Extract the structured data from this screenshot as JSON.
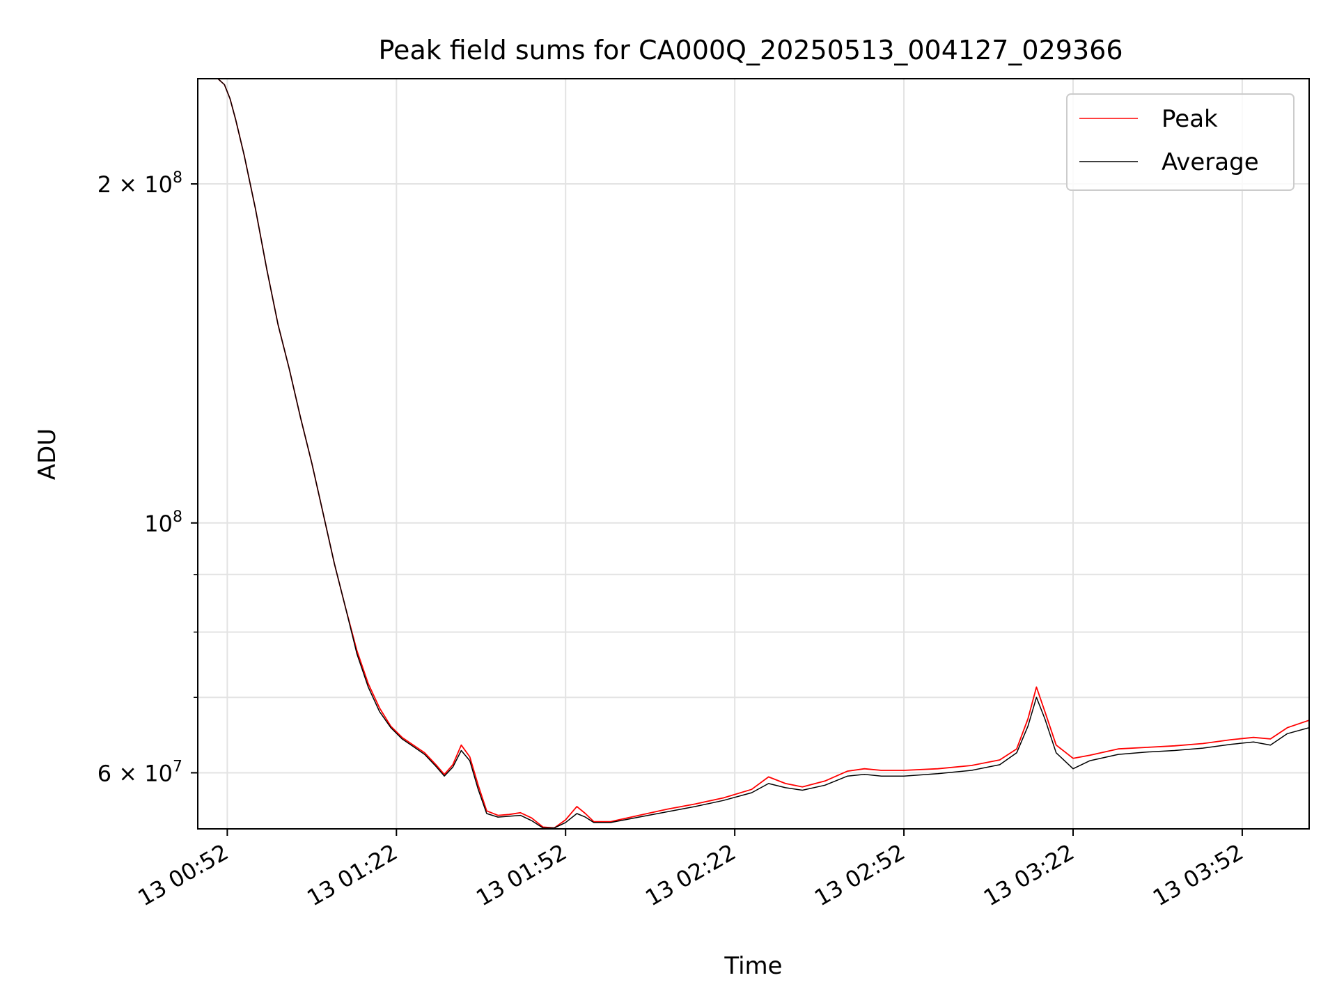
{
  "chart_data": {
    "type": "line",
    "title": "Peak field sums for CA000Q_20250513_004127_029366",
    "xlabel": "Time",
    "ylabel": "ADU",
    "yscale": "log",
    "ylim": [
      53500000,
      248000000
    ],
    "xlim": [
      "00:46:46",
      "04:03:52"
    ],
    "x_ticks": [
      {
        "label": "13 00:52",
        "time": "00:52:00"
      },
      {
        "label": "13 01:22",
        "time": "01:22:00"
      },
      {
        "label": "13 01:52",
        "time": "01:52:00"
      },
      {
        "label": "13 02:22",
        "time": "02:22:00"
      },
      {
        "label": "13 02:52",
        "time": "02:52:00"
      },
      {
        "label": "13 03:22",
        "time": "03:22:00"
      },
      {
        "label": "13 03:52",
        "time": "03:52:00"
      }
    ],
    "y_ticks": [
      {
        "label": "2 × 10",
        "sup": "8",
        "value": 200000000
      },
      {
        "label": "10",
        "sup": "8",
        "value": 100000000
      },
      {
        "label": "6 × 10",
        "sup": "7",
        "value": 60000000
      }
    ],
    "y_minor_ticks": [
      70000000,
      80000000,
      90000000
    ],
    "grid": true,
    "legend": "top-right",
    "series": [
      {
        "name": "Peak",
        "color": "#ff0000",
        "data": [
          [
            "00:46:46",
            248000000
          ],
          [
            "00:50:20",
            248000000
          ],
          [
            "00:51:30",
            245000000
          ],
          [
            "00:52:30",
            238000000
          ],
          [
            "00:53:30",
            228000000
          ],
          [
            "00:55:00",
            212000000
          ],
          [
            "00:57:00",
            190000000
          ],
          [
            "00:59:00",
            168000000
          ],
          [
            "01:01:00",
            150000000
          ],
          [
            "01:03:00",
            137000000
          ],
          [
            "01:05:00",
            124000000
          ],
          [
            "01:07:00",
            113000000
          ],
          [
            "01:09:00",
            102000000
          ],
          [
            "01:11:00",
            92000000
          ],
          [
            "01:13:00",
            84000000
          ],
          [
            "01:15:00",
            77000000
          ],
          [
            "01:17:00",
            72000000
          ],
          [
            "01:19:00",
            68500000
          ],
          [
            "01:21:00",
            66000000
          ],
          [
            "01:23:00",
            64500000
          ],
          [
            "01:25:00",
            63500000
          ],
          [
            "01:27:00",
            62500000
          ],
          [
            "01:29:00",
            61000000
          ],
          [
            "01:30:30",
            59800000
          ],
          [
            "01:32:00",
            61000000
          ],
          [
            "01:33:30",
            63500000
          ],
          [
            "01:35:00",
            62000000
          ],
          [
            "01:36:30",
            58500000
          ],
          [
            "01:38:00",
            55500000
          ],
          [
            "01:40:00",
            55000000
          ],
          [
            "01:42:00",
            55100000
          ],
          [
            "01:44:00",
            55300000
          ],
          [
            "01:46:00",
            54700000
          ],
          [
            "01:48:00",
            53700000
          ],
          [
            "01:50:00",
            53600000
          ],
          [
            "01:52:00",
            54500000
          ],
          [
            "01:54:00",
            56000000
          ],
          [
            "01:55:30",
            55200000
          ],
          [
            "01:57:00",
            54300000
          ],
          [
            "02:00:00",
            54300000
          ],
          [
            "02:05:00",
            55000000
          ],
          [
            "02:10:00",
            55700000
          ],
          [
            "02:15:00",
            56300000
          ],
          [
            "02:20:00",
            57000000
          ],
          [
            "02:25:00",
            58000000
          ],
          [
            "02:28:00",
            59500000
          ],
          [
            "02:31:00",
            58700000
          ],
          [
            "02:34:00",
            58300000
          ],
          [
            "02:38:00",
            59000000
          ],
          [
            "02:42:00",
            60200000
          ],
          [
            "02:45:00",
            60500000
          ],
          [
            "02:48:00",
            60300000
          ],
          [
            "02:52:00",
            60300000
          ],
          [
            "02:58:00",
            60500000
          ],
          [
            "03:04:00",
            60900000
          ],
          [
            "03:09:00",
            61600000
          ],
          [
            "03:12:00",
            63000000
          ],
          [
            "03:14:00",
            67000000
          ],
          [
            "03:15:30",
            71500000
          ],
          [
            "03:17:00",
            68000000
          ],
          [
            "03:19:00",
            63500000
          ],
          [
            "03:22:00",
            61800000
          ],
          [
            "03:25:00",
            62200000
          ],
          [
            "03:30:00",
            63000000
          ],
          [
            "03:35:00",
            63200000
          ],
          [
            "03:40:00",
            63400000
          ],
          [
            "03:45:00",
            63700000
          ],
          [
            "03:50:00",
            64200000
          ],
          [
            "03:54:00",
            64500000
          ],
          [
            "03:57:00",
            64300000
          ],
          [
            "04:00:00",
            65800000
          ],
          [
            "04:03:52",
            66800000
          ]
        ]
      },
      {
        "name": "Average",
        "color": "#000000",
        "data": [
          [
            "00:46:46",
            248000000
          ],
          [
            "00:50:20",
            248000000
          ],
          [
            "00:51:30",
            245000000
          ],
          [
            "00:52:30",
            238000000
          ],
          [
            "00:53:30",
            228000000
          ],
          [
            "00:55:00",
            212000000
          ],
          [
            "00:57:00",
            190000000
          ],
          [
            "00:59:00",
            168000000
          ],
          [
            "01:01:00",
            150000000
          ],
          [
            "01:03:00",
            137000000
          ],
          [
            "01:05:00",
            124000000
          ],
          [
            "01:07:00",
            113000000
          ],
          [
            "01:09:00",
            102000000
          ],
          [
            "01:11:00",
            92000000
          ],
          [
            "01:13:00",
            84000000
          ],
          [
            "01:15:00",
            76500000
          ],
          [
            "01:17:00",
            71500000
          ],
          [
            "01:19:00",
            68000000
          ],
          [
            "01:21:00",
            65800000
          ],
          [
            "01:23:00",
            64300000
          ],
          [
            "01:25:00",
            63300000
          ],
          [
            "01:27:00",
            62300000
          ],
          [
            "01:29:00",
            60800000
          ],
          [
            "01:30:30",
            59600000
          ],
          [
            "01:32:00",
            60700000
          ],
          [
            "01:33:30",
            62800000
          ],
          [
            "01:35:00",
            61500000
          ],
          [
            "01:36:30",
            58000000
          ],
          [
            "01:38:00",
            55200000
          ],
          [
            "01:40:00",
            54800000
          ],
          [
            "01:42:00",
            54900000
          ],
          [
            "01:44:00",
            55000000
          ],
          [
            "01:46:00",
            54400000
          ],
          [
            "01:48:00",
            53600000
          ],
          [
            "01:50:00",
            53600000
          ],
          [
            "01:52:00",
            54200000
          ],
          [
            "01:54:00",
            55200000
          ],
          [
            "01:55:30",
            54800000
          ],
          [
            "01:57:00",
            54200000
          ],
          [
            "02:00:00",
            54200000
          ],
          [
            "02:05:00",
            54800000
          ],
          [
            "02:10:00",
            55400000
          ],
          [
            "02:15:00",
            56000000
          ],
          [
            "02:20:00",
            56700000
          ],
          [
            "02:25:00",
            57600000
          ],
          [
            "02:28:00",
            58700000
          ],
          [
            "02:31:00",
            58200000
          ],
          [
            "02:34:00",
            57900000
          ],
          [
            "02:38:00",
            58500000
          ],
          [
            "02:42:00",
            59600000
          ],
          [
            "02:45:00",
            59800000
          ],
          [
            "02:48:00",
            59600000
          ],
          [
            "02:52:00",
            59600000
          ],
          [
            "02:58:00",
            59900000
          ],
          [
            "03:04:00",
            60300000
          ],
          [
            "03:09:00",
            61000000
          ],
          [
            "03:12:00",
            62500000
          ],
          [
            "03:14:00",
            66000000
          ],
          [
            "03:15:30",
            70000000
          ],
          [
            "03:17:00",
            67000000
          ],
          [
            "03:19:00",
            62500000
          ],
          [
            "03:22:00",
            60500000
          ],
          [
            "03:25:00",
            61500000
          ],
          [
            "03:30:00",
            62300000
          ],
          [
            "03:35:00",
            62600000
          ],
          [
            "03:40:00",
            62800000
          ],
          [
            "03:45:00",
            63100000
          ],
          [
            "03:50:00",
            63600000
          ],
          [
            "03:54:00",
            63900000
          ],
          [
            "03:57:00",
            63500000
          ],
          [
            "04:00:00",
            65000000
          ],
          [
            "04:03:52",
            65800000
          ]
        ]
      }
    ]
  }
}
